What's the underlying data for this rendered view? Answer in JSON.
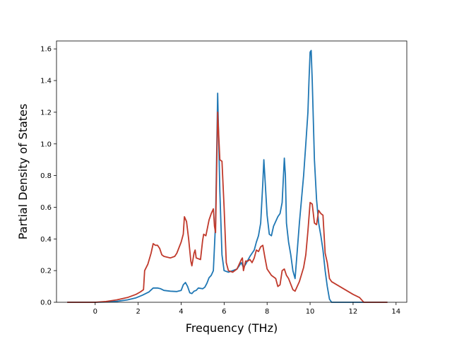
{
  "chart_data": {
    "type": "line",
    "title": "",
    "xlabel": "Frequency (THz)",
    "ylabel": "Partial Density of States",
    "xlim": [
      -1.8,
      14.5
    ],
    "ylim": [
      0.0,
      1.65
    ],
    "xticks": [
      0,
      2,
      4,
      6,
      8,
      10,
      12,
      14
    ],
    "xtick_labels": [
      "0",
      "2",
      "4",
      "6",
      "8",
      "10",
      "12",
      "14"
    ],
    "yticks": [
      0.0,
      0.2,
      0.4,
      0.6,
      0.8,
      1.0,
      1.2,
      1.4,
      1.6
    ],
    "ytick_labels": [
      "0.0",
      "0.2",
      "0.4",
      "0.6",
      "0.8",
      "1.0",
      "1.2",
      "1.4",
      "1.6"
    ],
    "grid": false,
    "legend": "none",
    "series": [
      {
        "color": "#1f77b4",
        "points": [
          [
            -1.3,
            0.0
          ],
          [
            0.0,
            0.0
          ],
          [
            0.5,
            0.002
          ],
          [
            1.0,
            0.006
          ],
          [
            1.5,
            0.015
          ],
          [
            1.9,
            0.028
          ],
          [
            2.2,
            0.045
          ],
          [
            2.5,
            0.065
          ],
          [
            2.7,
            0.09
          ],
          [
            2.9,
            0.09
          ],
          [
            3.05,
            0.085
          ],
          [
            3.2,
            0.075
          ],
          [
            3.5,
            0.07
          ],
          [
            3.8,
            0.068
          ],
          [
            4.0,
            0.075
          ],
          [
            4.1,
            0.11
          ],
          [
            4.2,
            0.125
          ],
          [
            4.3,
            0.1
          ],
          [
            4.4,
            0.06
          ],
          [
            4.5,
            0.055
          ],
          [
            4.6,
            0.07
          ],
          [
            4.7,
            0.075
          ],
          [
            4.8,
            0.09
          ],
          [
            4.9,
            0.088
          ],
          [
            5.0,
            0.085
          ],
          [
            5.1,
            0.095
          ],
          [
            5.2,
            0.12
          ],
          [
            5.3,
            0.155
          ],
          [
            5.4,
            0.17
          ],
          [
            5.5,
            0.2
          ],
          [
            5.6,
            0.5
          ],
          [
            5.7,
            1.32
          ],
          [
            5.8,
            0.7
          ],
          [
            5.9,
            0.3
          ],
          [
            6.0,
            0.2
          ],
          [
            6.2,
            0.19
          ],
          [
            6.4,
            0.2
          ],
          [
            6.6,
            0.21
          ],
          [
            6.8,
            0.25
          ],
          [
            6.9,
            0.22
          ],
          [
            7.0,
            0.24
          ],
          [
            7.2,
            0.29
          ],
          [
            7.4,
            0.33
          ],
          [
            7.5,
            0.38
          ],
          [
            7.6,
            0.42
          ],
          [
            7.7,
            0.5
          ],
          [
            7.8,
            0.75
          ],
          [
            7.85,
            0.9
          ],
          [
            7.9,
            0.78
          ],
          [
            8.0,
            0.55
          ],
          [
            8.1,
            0.43
          ],
          [
            8.2,
            0.42
          ],
          [
            8.3,
            0.48
          ],
          [
            8.5,
            0.54
          ],
          [
            8.6,
            0.56
          ],
          [
            8.7,
            0.63
          ],
          [
            8.8,
            0.91
          ],
          [
            8.85,
            0.8
          ],
          [
            8.9,
            0.5
          ],
          [
            9.0,
            0.38
          ],
          [
            9.1,
            0.3
          ],
          [
            9.2,
            0.2
          ],
          [
            9.3,
            0.15
          ],
          [
            9.4,
            0.32
          ],
          [
            9.5,
            0.5
          ],
          [
            9.6,
            0.65
          ],
          [
            9.7,
            0.8
          ],
          [
            9.8,
            1.0
          ],
          [
            9.9,
            1.2
          ],
          [
            9.95,
            1.4
          ],
          [
            10.0,
            1.58
          ],
          [
            10.05,
            1.59
          ],
          [
            10.1,
            1.4
          ],
          [
            10.2,
            0.9
          ],
          [
            10.3,
            0.65
          ],
          [
            10.4,
            0.5
          ],
          [
            10.5,
            0.42
          ],
          [
            10.6,
            0.33
          ],
          [
            10.7,
            0.2
          ],
          [
            10.8,
            0.1
          ],
          [
            10.9,
            0.02
          ],
          [
            11.0,
            0.0
          ],
          [
            12.0,
            0.0
          ],
          [
            13.6,
            0.0
          ]
        ]
      },
      {
        "color": "#c0392b",
        "points": [
          [
            -1.3,
            0.0
          ],
          [
            0.0,
            0.0
          ],
          [
            0.5,
            0.005
          ],
          [
            1.0,
            0.015
          ],
          [
            1.5,
            0.03
          ],
          [
            1.9,
            0.05
          ],
          [
            2.1,
            0.065
          ],
          [
            2.25,
            0.08
          ],
          [
            2.3,
            0.2
          ],
          [
            2.45,
            0.24
          ],
          [
            2.6,
            0.31
          ],
          [
            2.7,
            0.37
          ],
          [
            2.8,
            0.36
          ],
          [
            2.9,
            0.36
          ],
          [
            3.0,
            0.34
          ],
          [
            3.1,
            0.3
          ],
          [
            3.2,
            0.29
          ],
          [
            3.5,
            0.28
          ],
          [
            3.7,
            0.29
          ],
          [
            3.8,
            0.31
          ],
          [
            4.0,
            0.38
          ],
          [
            4.1,
            0.43
          ],
          [
            4.15,
            0.54
          ],
          [
            4.25,
            0.51
          ],
          [
            4.35,
            0.4
          ],
          [
            4.45,
            0.26
          ],
          [
            4.5,
            0.23
          ],
          [
            4.6,
            0.31
          ],
          [
            4.65,
            0.33
          ],
          [
            4.7,
            0.28
          ],
          [
            4.9,
            0.27
          ],
          [
            5.0,
            0.39
          ],
          [
            5.05,
            0.43
          ],
          [
            5.15,
            0.42
          ],
          [
            5.3,
            0.52
          ],
          [
            5.4,
            0.56
          ],
          [
            5.5,
            0.59
          ],
          [
            5.55,
            0.48
          ],
          [
            5.6,
            0.44
          ],
          [
            5.7,
            1.2
          ],
          [
            5.8,
            0.9
          ],
          [
            5.9,
            0.89
          ],
          [
            6.0,
            0.6
          ],
          [
            6.1,
            0.25
          ],
          [
            6.2,
            0.2
          ],
          [
            6.4,
            0.19
          ],
          [
            6.6,
            0.21
          ],
          [
            6.8,
            0.27
          ],
          [
            6.85,
            0.28
          ],
          [
            6.9,
            0.2
          ],
          [
            7.0,
            0.26
          ],
          [
            7.1,
            0.26
          ],
          [
            7.2,
            0.27
          ],
          [
            7.3,
            0.25
          ],
          [
            7.4,
            0.28
          ],
          [
            7.5,
            0.33
          ],
          [
            7.6,
            0.32
          ],
          [
            7.7,
            0.35
          ],
          [
            7.8,
            0.36
          ],
          [
            7.9,
            0.28
          ],
          [
            8.0,
            0.21
          ],
          [
            8.2,
            0.17
          ],
          [
            8.4,
            0.15
          ],
          [
            8.5,
            0.1
          ],
          [
            8.6,
            0.11
          ],
          [
            8.7,
            0.2
          ],
          [
            8.8,
            0.21
          ],
          [
            8.9,
            0.17
          ],
          [
            9.0,
            0.15
          ],
          [
            9.2,
            0.08
          ],
          [
            9.3,
            0.07
          ],
          [
            9.5,
            0.13
          ],
          [
            9.7,
            0.22
          ],
          [
            9.8,
            0.3
          ],
          [
            9.9,
            0.45
          ],
          [
            10.0,
            0.63
          ],
          [
            10.1,
            0.62
          ],
          [
            10.2,
            0.5
          ],
          [
            10.3,
            0.49
          ],
          [
            10.4,
            0.58
          ],
          [
            10.5,
            0.56
          ],
          [
            10.6,
            0.55
          ],
          [
            10.7,
            0.31
          ],
          [
            10.8,
            0.25
          ],
          [
            10.9,
            0.15
          ],
          [
            11.0,
            0.13
          ],
          [
            11.5,
            0.09
          ],
          [
            12.0,
            0.05
          ],
          [
            12.3,
            0.03
          ],
          [
            12.5,
            0.0
          ],
          [
            13.6,
            0.0
          ]
        ]
      }
    ]
  }
}
